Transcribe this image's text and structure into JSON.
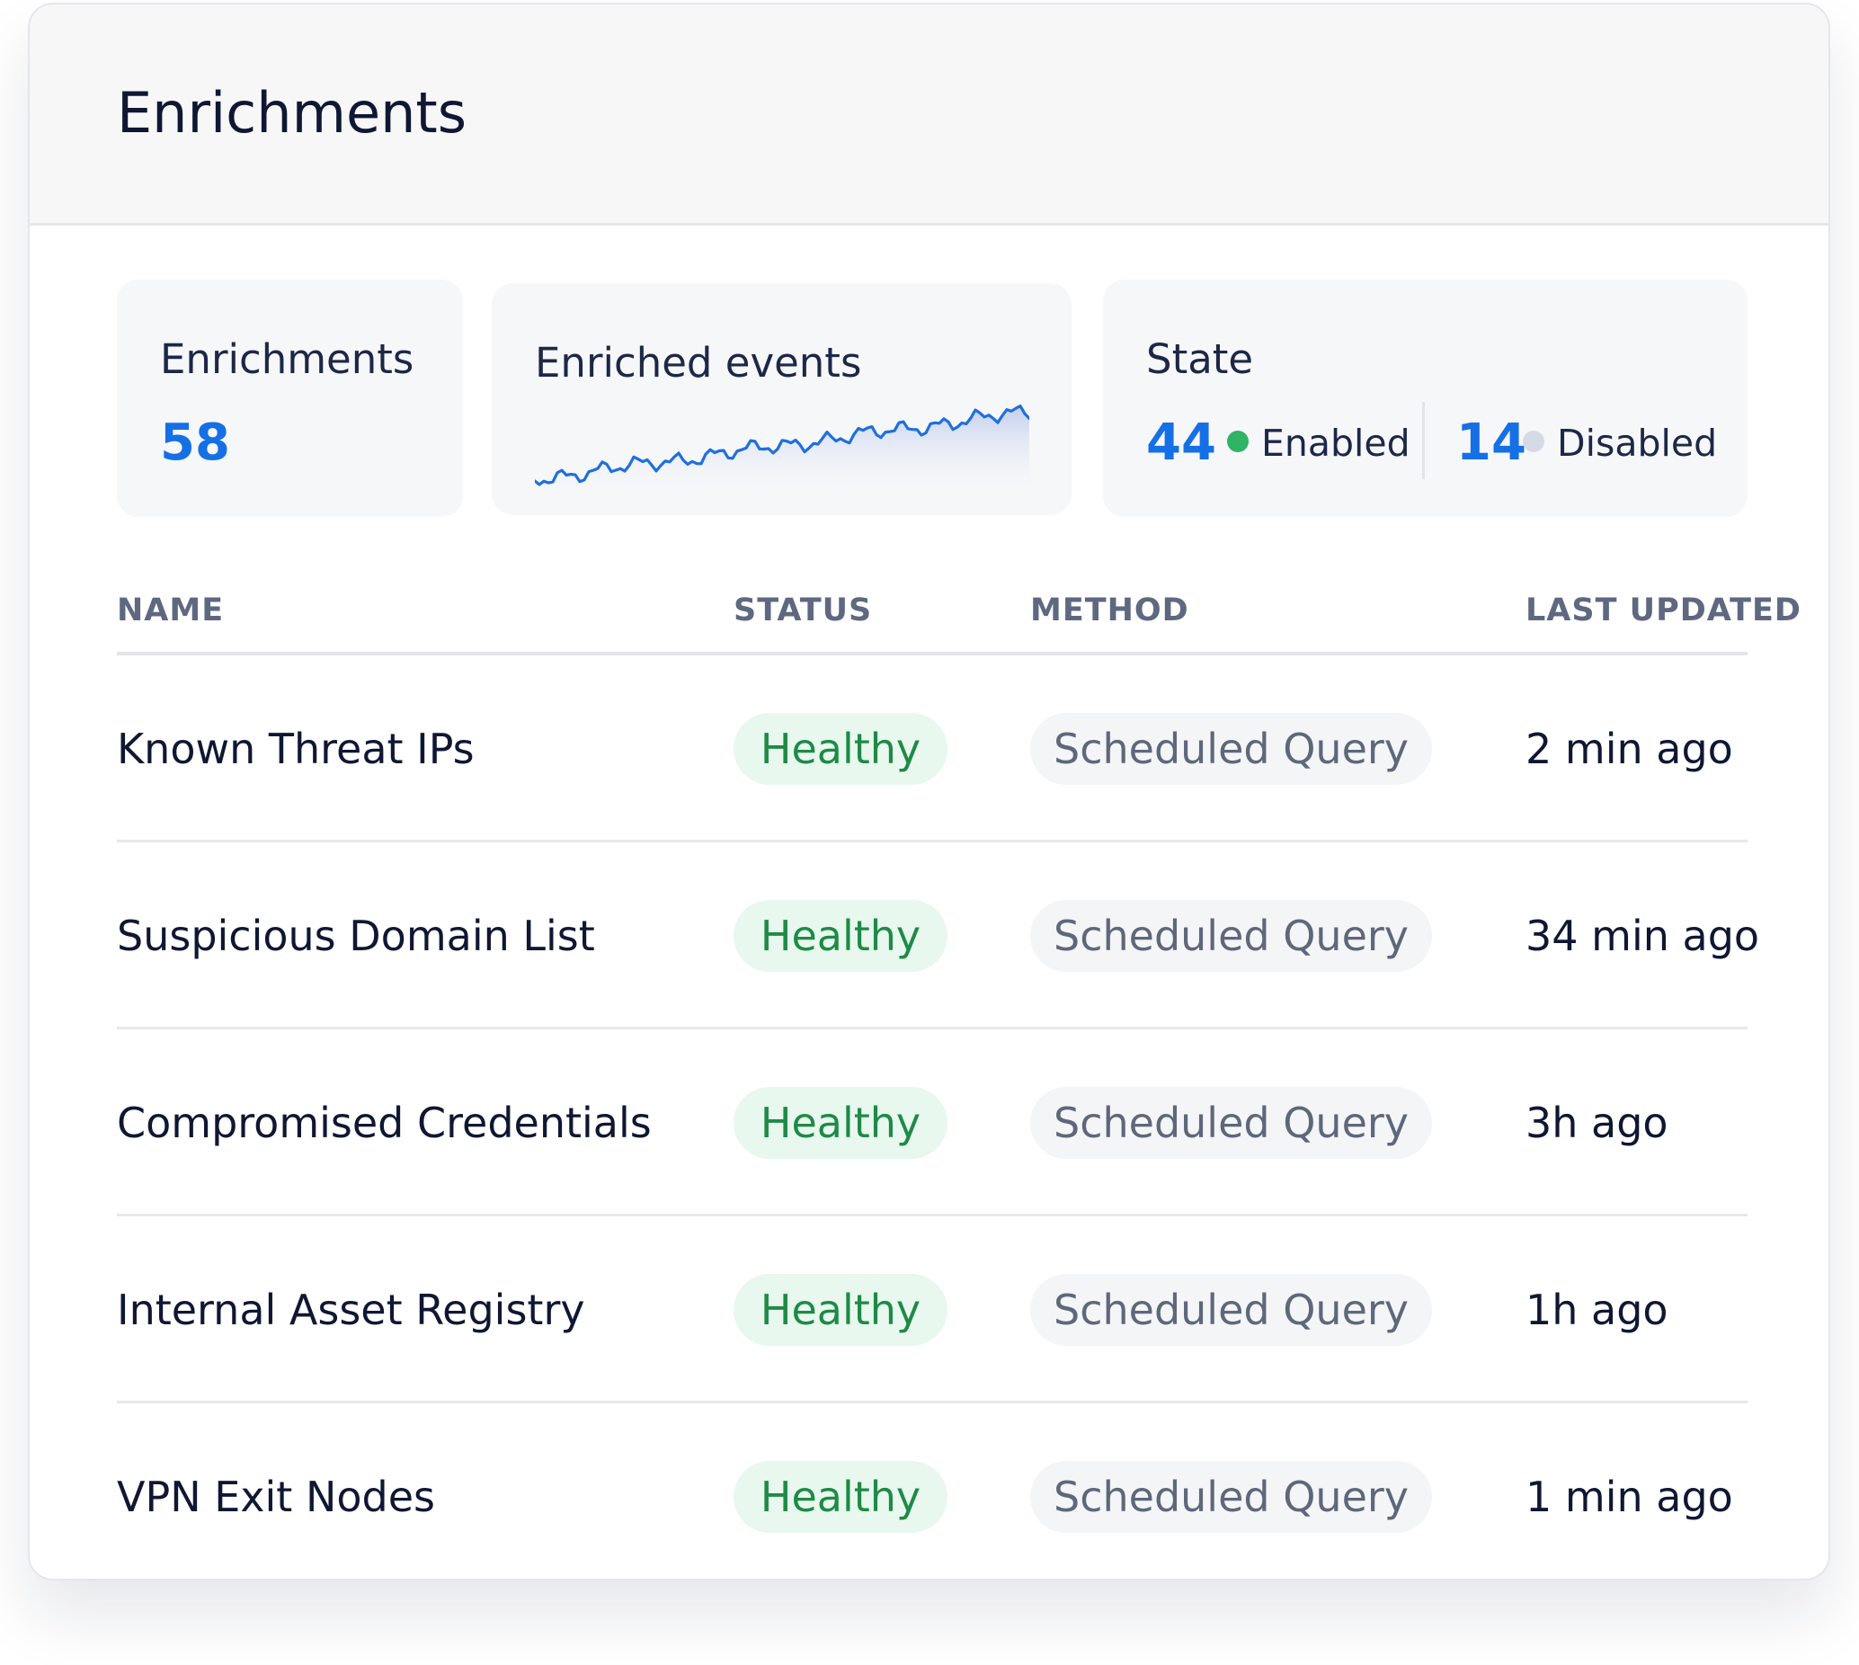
{
  "page": {
    "title": "Enrichments"
  },
  "stats": {
    "enrichments": {
      "label": "Enrichments",
      "value": "58"
    },
    "enriched_events": {
      "label": "Enriched events"
    },
    "state": {
      "label": "State",
      "enabled_count": "44",
      "enabled_label": "Enabled",
      "disabled_count": "14",
      "disabled_label": "Disabled"
    }
  },
  "colors": {
    "accent": "#1570e6",
    "enabled_dot": "#2fb365",
    "disabled_dot": "#d5dbe6",
    "healthy_text": "#1e8a47",
    "healthy_bg": "#e8f8ee"
  },
  "table": {
    "headers": {
      "name": "NAME",
      "status": "STATUS",
      "method": "METHOD",
      "last_updated": "LAST UPDATED"
    },
    "rows": [
      {
        "name": "Known Threat IPs",
        "status": "Healthy",
        "method": "Scheduled Query",
        "last_updated": "2 min ago"
      },
      {
        "name": "Suspicious Domain List",
        "status": "Healthy",
        "method": "Scheduled Query",
        "last_updated": "34 min ago"
      },
      {
        "name": "Compromised Credentials",
        "status": "Healthy",
        "method": "Scheduled Query",
        "last_updated": "3h ago"
      },
      {
        "name": "Internal Asset Registry",
        "status": "Healthy",
        "method": "Scheduled Query",
        "last_updated": "1h ago"
      },
      {
        "name": "VPN Exit Nodes",
        "status": "Healthy",
        "method": "Scheduled Query",
        "last_updated": "1 min ago"
      }
    ]
  }
}
